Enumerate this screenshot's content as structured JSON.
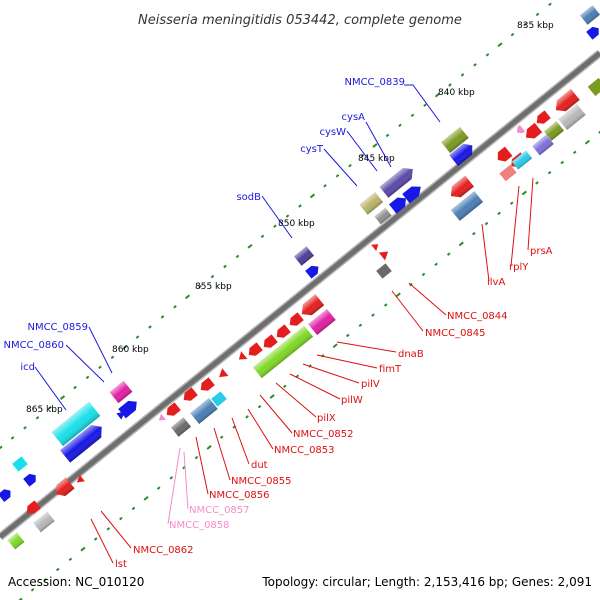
{
  "title": "Neisseria meningitidis 053442, complete genome",
  "footer": {
    "accession": "Accession: NC_010120",
    "summary": "Topology: circular; Length: 2,153,416 bp; Genes: 2,091"
  },
  "colors": {
    "forward_label": "#1a1adb",
    "reverse_label": "#dd1010",
    "pseudo_label": "#f58ccb",
    "tick": "#2a8a2a",
    "backbone": "#707070"
  },
  "ruler": [
    {
      "label": "835 kbp"
    },
    {
      "label": "840 kbp"
    },
    {
      "label": "845 kbp"
    },
    {
      "label": "850 kbp"
    },
    {
      "label": "855 kbp"
    },
    {
      "label": "860 kbp"
    },
    {
      "label": "865 kbp"
    }
  ],
  "gene_labels": [
    {
      "text": "NMCC_0839",
      "strand": "forward"
    },
    {
      "text": "cysA",
      "strand": "forward"
    },
    {
      "text": "cysW",
      "strand": "forward"
    },
    {
      "text": "cysT",
      "strand": "forward"
    },
    {
      "text": "sodB",
      "strand": "forward"
    },
    {
      "text": "NMCC_0859",
      "strand": "forward"
    },
    {
      "text": "NMCC_0860",
      "strand": "forward"
    },
    {
      "text": "icd",
      "strand": "forward"
    },
    {
      "text": "prsA",
      "strand": "reverse"
    },
    {
      "text": "rplY",
      "strand": "reverse"
    },
    {
      "text": "ilvA",
      "strand": "reverse"
    },
    {
      "text": "NMCC_0844",
      "strand": "reverse"
    },
    {
      "text": "NMCC_0845",
      "strand": "reverse"
    },
    {
      "text": "dnaB",
      "strand": "reverse"
    },
    {
      "text": "fimT",
      "strand": "reverse"
    },
    {
      "text": "pilV",
      "strand": "reverse"
    },
    {
      "text": "pilW",
      "strand": "reverse"
    },
    {
      "text": "pilX",
      "strand": "reverse"
    },
    {
      "text": "NMCC_0852",
      "strand": "reverse"
    },
    {
      "text": "NMCC_0853",
      "strand": "reverse"
    },
    {
      "text": "dut",
      "strand": "reverse"
    },
    {
      "text": "NMCC_0855",
      "strand": "reverse"
    },
    {
      "text": "NMCC_0856",
      "strand": "reverse"
    },
    {
      "text": "NMCC_0857",
      "strand": "pseudo"
    },
    {
      "text": "NMCC_0858",
      "strand": "pseudo"
    },
    {
      "text": "NMCC_0862",
      "strand": "reverse"
    },
    {
      "text": "lst",
      "strand": "reverse"
    }
  ]
}
